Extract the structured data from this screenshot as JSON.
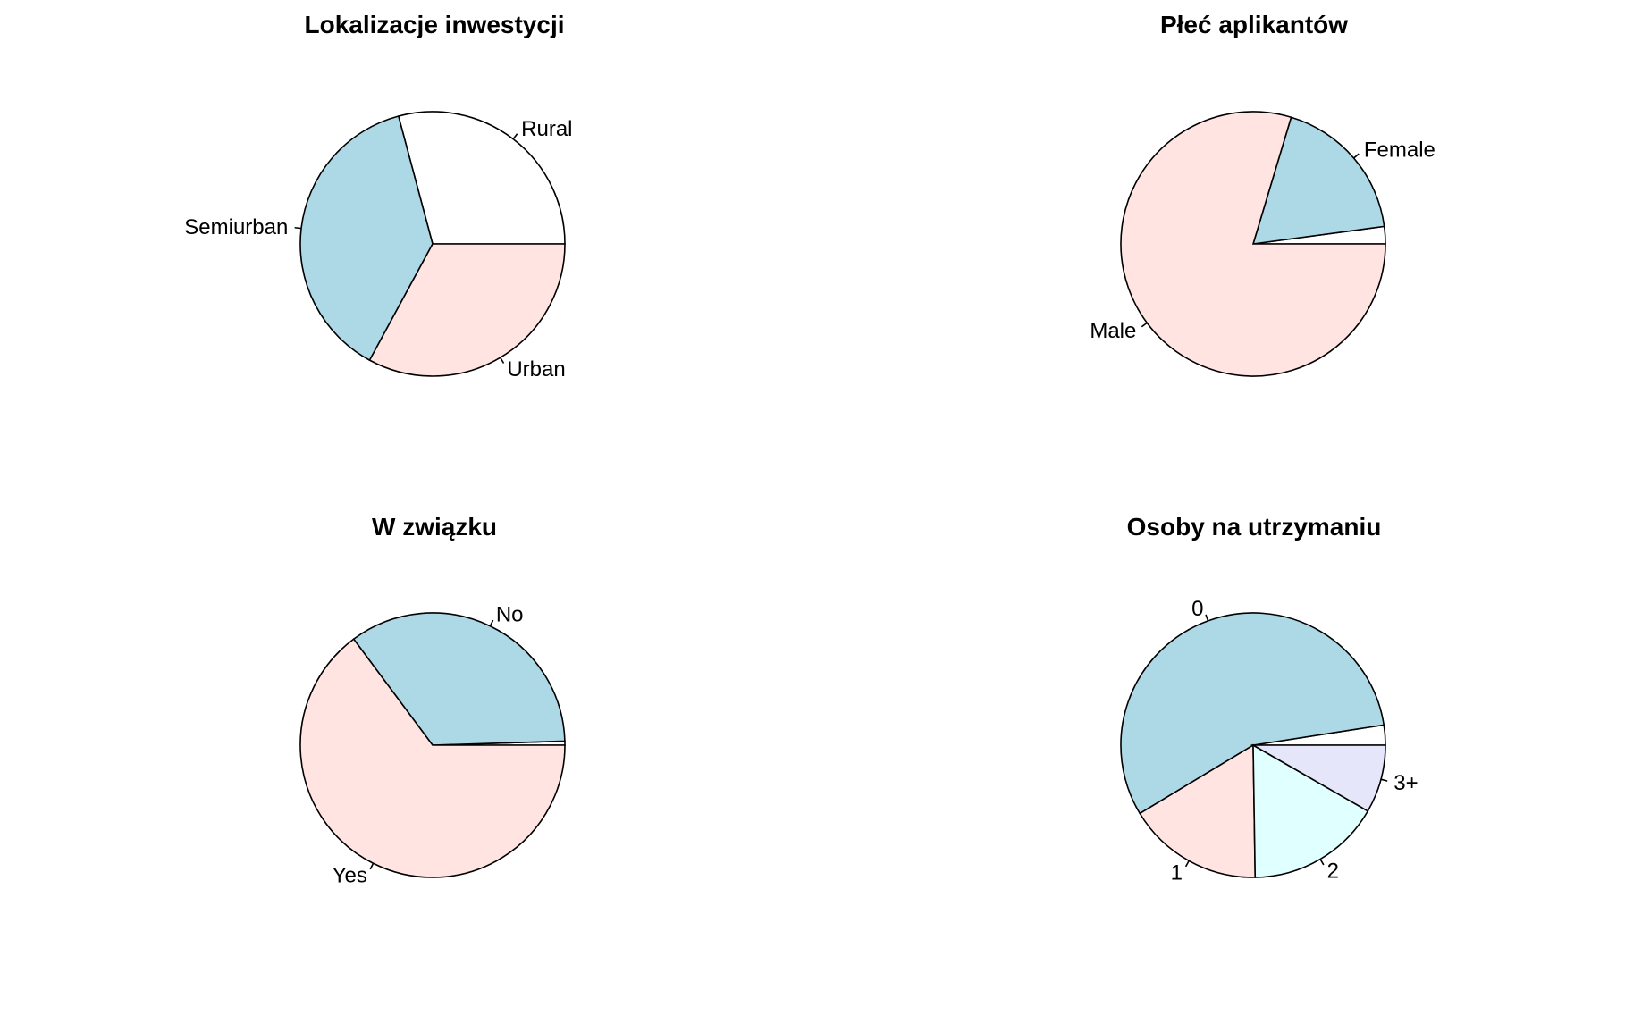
{
  "chart_data": [
    {
      "type": "pie",
      "title": "Lokalizacje inwestycji",
      "slices": [
        {
          "label": "",
          "value": 0,
          "color": "#ffffff"
        },
        {
          "label": "Rural",
          "value": 179,
          "color": "#ffffff"
        },
        {
          "label": "Semiurban",
          "value": 233,
          "color": "#add8e6"
        },
        {
          "label": "Urban",
          "value": 202,
          "color": "#ffe4e1"
        }
      ]
    },
    {
      "type": "pie",
      "title": "Płeć aplikantów",
      "slices": [
        {
          "label": "",
          "value": 13,
          "color": "#ffffff"
        },
        {
          "label": "Female",
          "value": 112,
          "color": "#add8e6"
        },
        {
          "label": "Male",
          "value": 489,
          "color": "#ffe4e1"
        }
      ]
    },
    {
      "type": "pie",
      "title": "W związku",
      "slices": [
        {
          "label": "",
          "value": 3,
          "color": "#ffffff"
        },
        {
          "label": "No",
          "value": 213,
          "color": "#add8e6"
        },
        {
          "label": "Yes",
          "value": 398,
          "color": "#ffe4e1"
        }
      ]
    },
    {
      "type": "pie",
      "title": "Osoby na utrzymaniu",
      "slices": [
        {
          "label": "",
          "value": 15,
          "color": "#ffffff"
        },
        {
          "label": "0",
          "value": 345,
          "color": "#add8e6"
        },
        {
          "label": "1",
          "value": 102,
          "color": "#ffe4e1"
        },
        {
          "label": "2",
          "value": 101,
          "color": "#e0ffff"
        },
        {
          "label": "3+",
          "value": 51,
          "color": "#e6e6fa"
        }
      ]
    }
  ]
}
